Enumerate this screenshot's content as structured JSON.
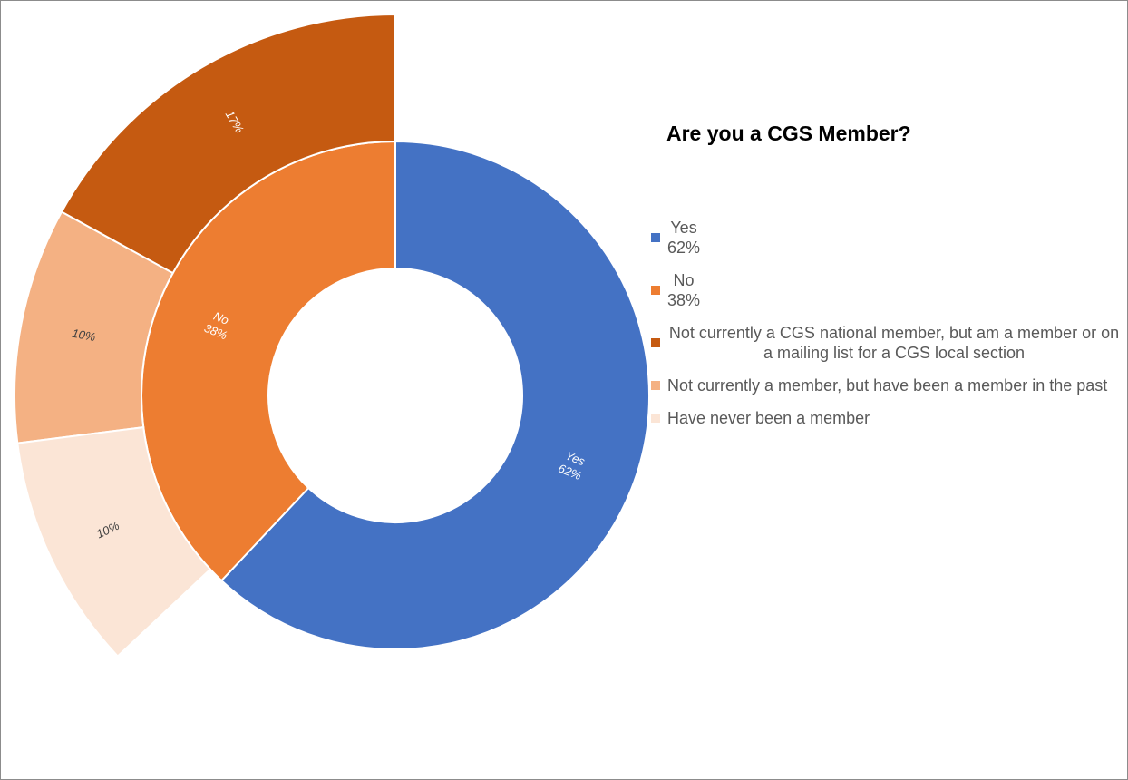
{
  "chart_data": {
    "type": "pie",
    "title": "Are you a CGS Member?",
    "inner_ring": [
      {
        "name": "Yes",
        "value": 62,
        "label": "62%",
        "color": "#4472C4"
      },
      {
        "name": "No",
        "value": 38,
        "label": "38%",
        "color": "#ED7D31"
      }
    ],
    "outer_ring": [
      {
        "name": "Not currently a CGS national member, but am a member or on a mailing list for a CGS local section",
        "value": 17,
        "label": "17%",
        "color": "#C55A11"
      },
      {
        "name": "Not currently a member, but have been a member in the past",
        "value": 10,
        "label": "10%",
        "color": "#F4B183"
      },
      {
        "name": "Have never been a member",
        "value": 10,
        "label": "10%",
        "color": "#FBE5D6"
      }
    ],
    "legend_position": "right",
    "legend": [
      {
        "label": "Yes",
        "value_label": "62%",
        "color": "#4472C4"
      },
      {
        "label": "No",
        "value_label": "38%",
        "color": "#ED7D31"
      },
      {
        "label": "Not currently a CGS national member, but am a member or on a mailing list for a CGS local section",
        "value_label": "",
        "color": "#C55A11"
      },
      {
        "label": "Not currently a member, but have been a member in the past",
        "value_label": "",
        "color": "#F4B183"
      },
      {
        "label": "Have never been a member",
        "value_label": "",
        "color": "#FBE5D6"
      }
    ]
  }
}
